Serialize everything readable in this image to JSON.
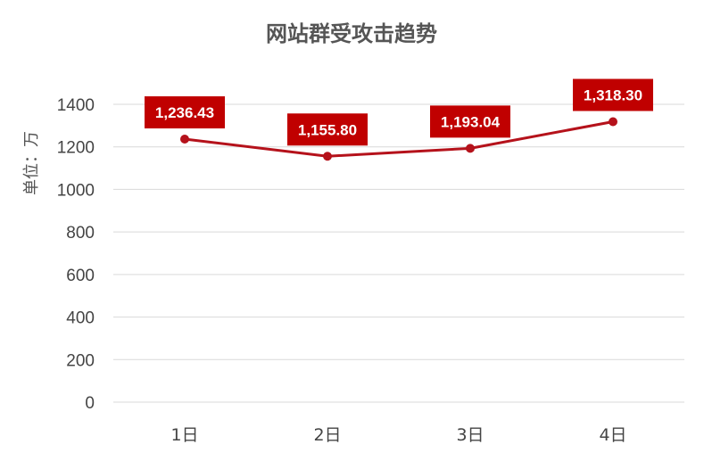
{
  "chart_data": {
    "type": "line",
    "title": "网站群受攻击趋势",
    "ylabel": "单位：万",
    "xlabel": "",
    "categories": [
      "1日",
      "2日",
      "3日",
      "4日"
    ],
    "series": [
      {
        "values": [
          1236.43,
          1155.8,
          1193.04,
          1318.3
        ],
        "labels": [
          "1,236.43",
          "1,155.80",
          "1,193.04",
          "1,318.30"
        ]
      }
    ],
    "ylim": [
      0,
      1400
    ],
    "yticks": [
      0,
      200,
      400,
      600,
      800,
      1000,
      1200,
      1400
    ],
    "grid": true,
    "legend": "none",
    "colors": {
      "line": "#b5121b",
      "label_bg": "#c00000",
      "label_text": "#ffffff"
    }
  }
}
